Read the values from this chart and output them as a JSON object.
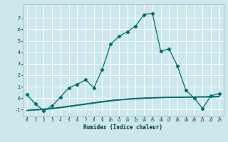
{
  "title": "",
  "xlabel": "Humidex (Indice chaleur)",
  "bg_color": "#cce8ed",
  "grid_color": "#ffffff",
  "line_color": "#006e6e",
  "xlim": [
    -0.5,
    23.5
  ],
  "ylim": [
    -1.6,
    8.2
  ],
  "x_main": [
    0,
    1,
    2,
    3,
    4,
    5,
    6,
    7,
    8,
    9,
    10,
    11,
    12,
    13,
    14,
    15,
    16,
    17,
    18,
    19,
    20,
    21,
    22,
    23
  ],
  "y_main": [
    0.3,
    -0.5,
    -1.1,
    -0.7,
    0.1,
    0.9,
    1.2,
    1.6,
    0.9,
    2.5,
    4.7,
    5.4,
    5.8,
    6.3,
    7.3,
    7.4,
    4.1,
    4.3,
    2.8,
    0.7,
    0.0,
    -0.9,
    0.2,
    0.4
  ],
  "flat_lines": [
    [
      -1.1,
      -1.05,
      -1.0,
      -0.95,
      -0.85,
      -0.75,
      -0.65,
      -0.55,
      -0.45,
      -0.35,
      -0.25,
      -0.18,
      -0.12,
      -0.07,
      -0.03,
      0.0,
      0.02,
      0.04,
      0.05,
      0.06,
      0.07,
      0.08,
      0.09,
      0.1
    ],
    [
      -1.08,
      -1.02,
      -0.97,
      -0.92,
      -0.82,
      -0.72,
      -0.62,
      -0.52,
      -0.42,
      -0.32,
      -0.22,
      -0.15,
      -0.09,
      -0.04,
      0.0,
      0.03,
      0.05,
      0.07,
      0.08,
      0.09,
      0.1,
      0.11,
      0.12,
      0.13
    ],
    [
      -1.05,
      -0.99,
      -0.94,
      -0.89,
      -0.79,
      -0.69,
      -0.59,
      -0.49,
      -0.39,
      -0.29,
      -0.19,
      -0.12,
      -0.06,
      -0.01,
      0.02,
      0.05,
      0.07,
      0.09,
      0.1,
      0.11,
      0.12,
      0.13,
      0.14,
      0.15
    ]
  ],
  "yticks": [
    -1,
    0,
    1,
    2,
    3,
    4,
    5,
    6,
    7
  ],
  "xticks": [
    0,
    1,
    2,
    3,
    4,
    5,
    6,
    7,
    8,
    9,
    10,
    11,
    12,
    13,
    14,
    15,
    16,
    17,
    18,
    19,
    20,
    21,
    22,
    23
  ]
}
